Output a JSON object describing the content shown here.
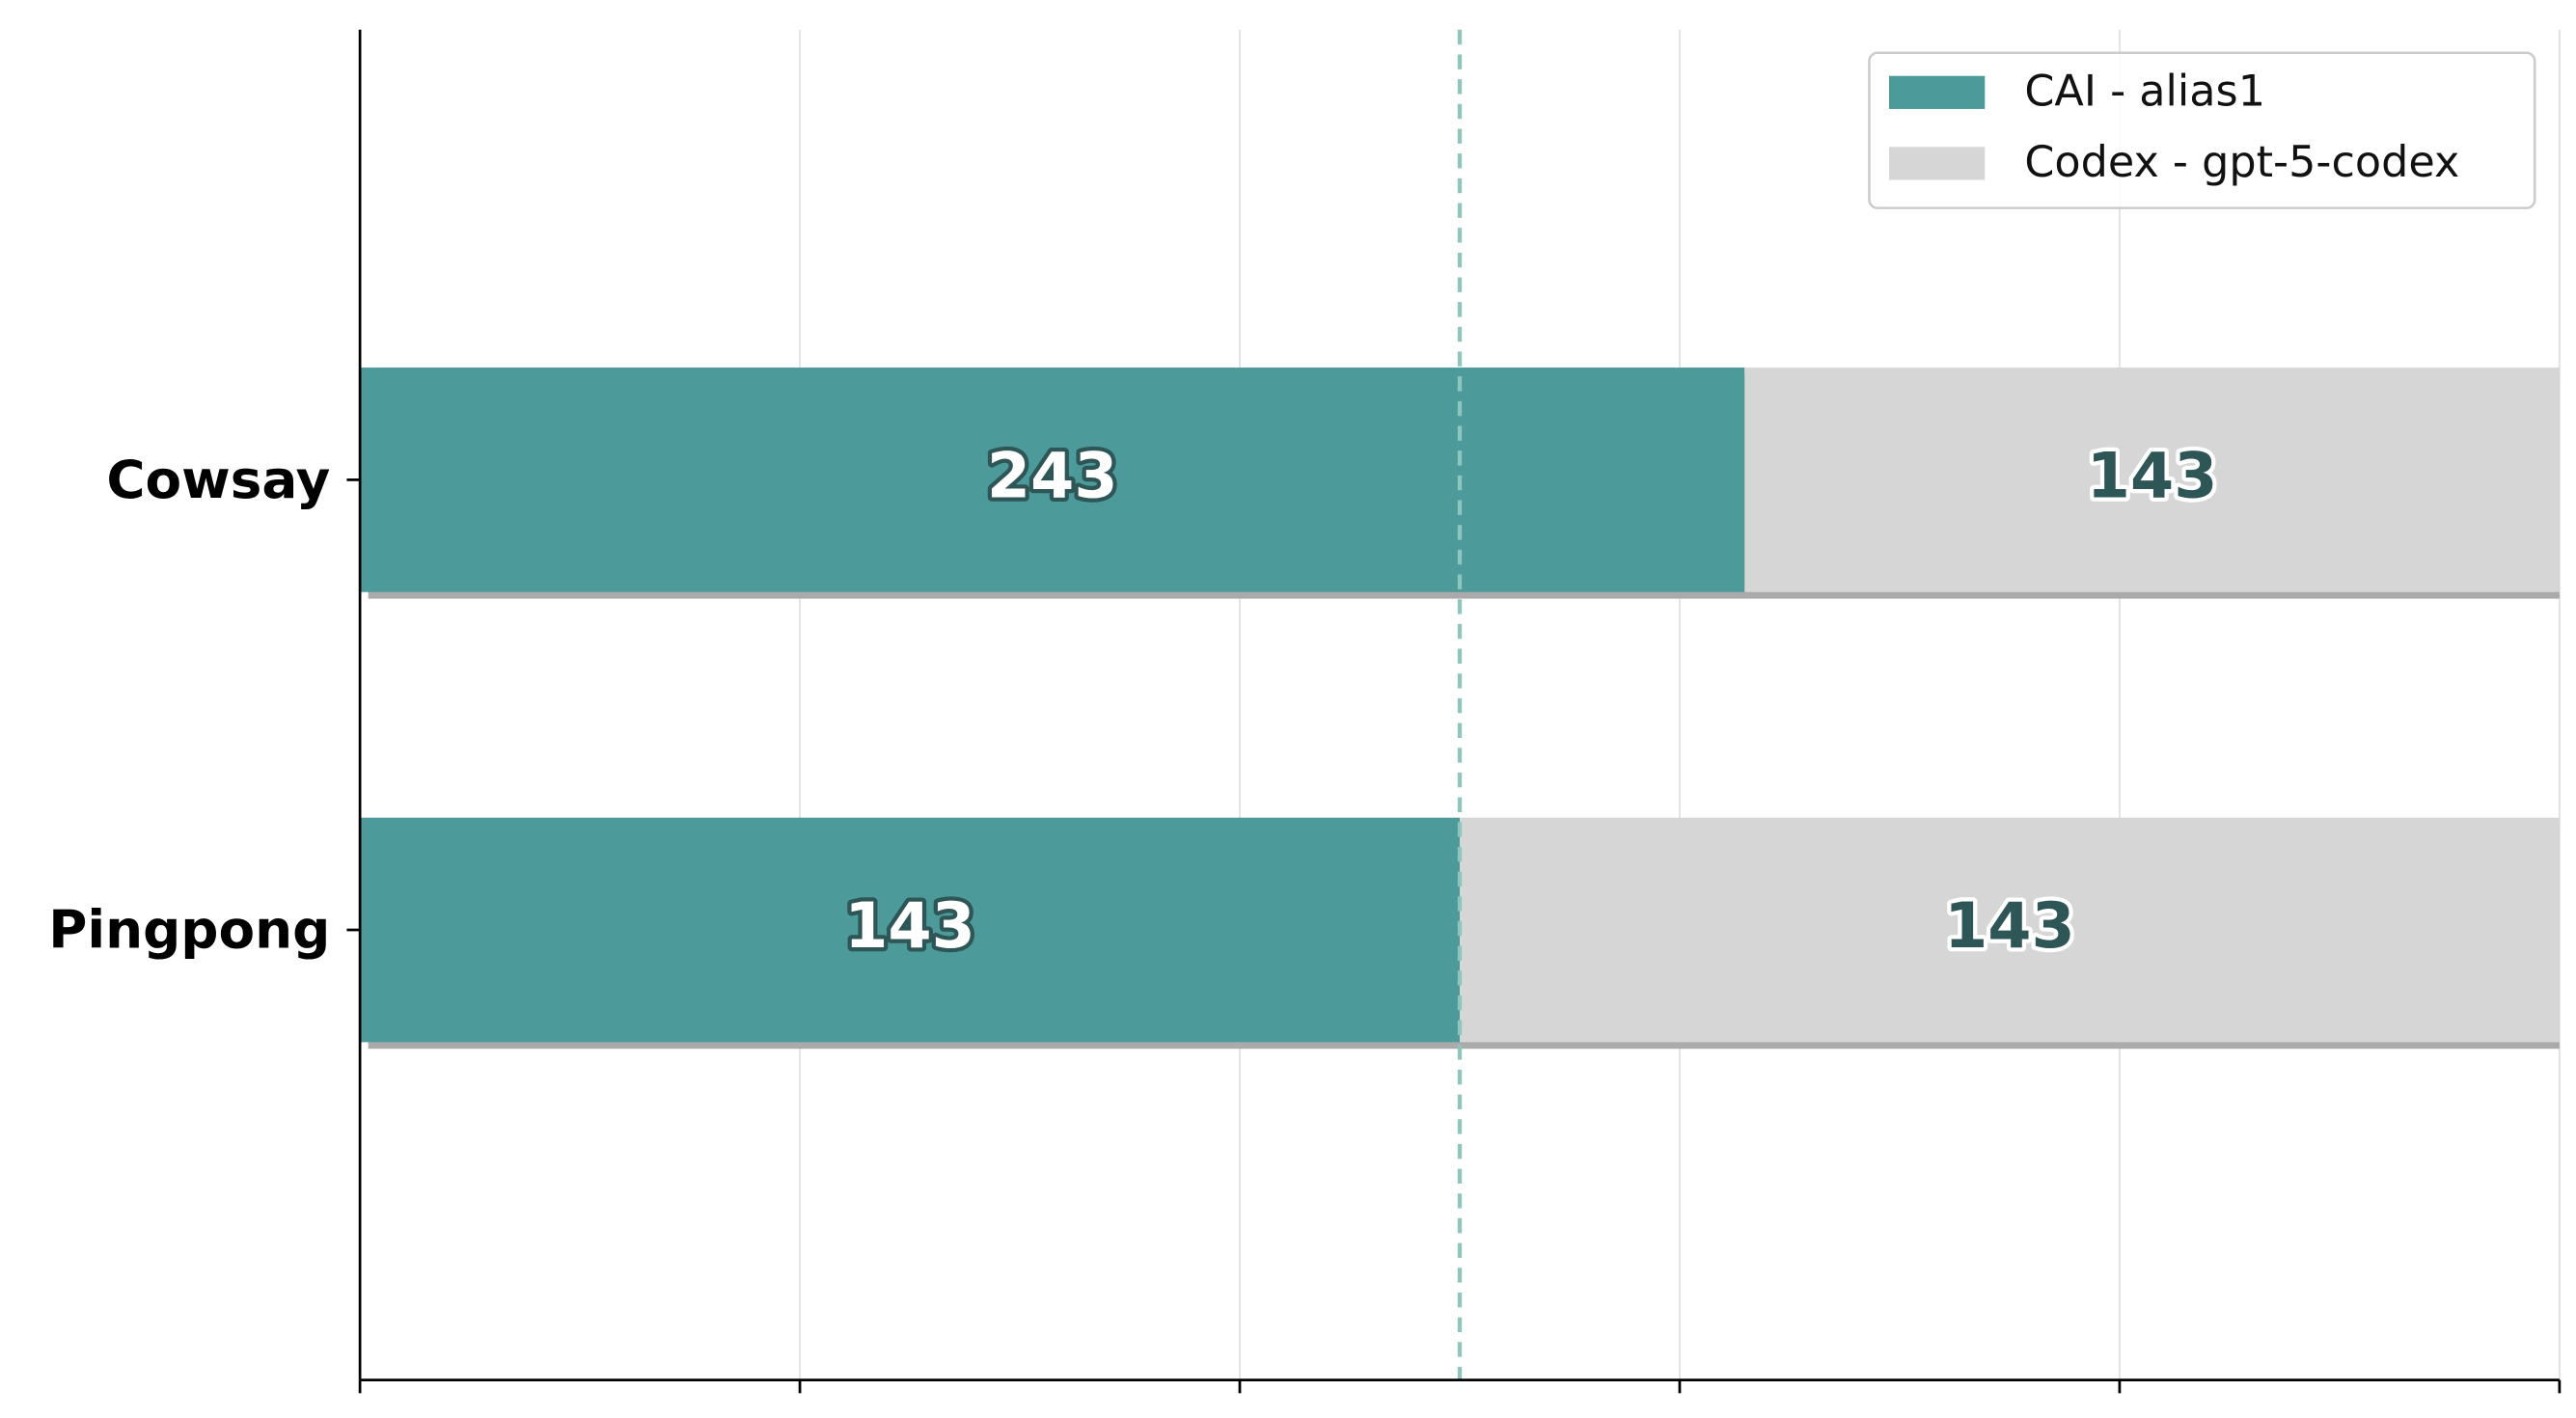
{
  "chart_data": {
    "type": "bar",
    "orientation": "horizontal",
    "stacking": "percent",
    "categories": [
      "Cowsay",
      "Pingpong"
    ],
    "series": [
      {
        "name": "CAI - alias1",
        "color": "#4d9a9b",
        "values": [
          243,
          143
        ]
      },
      {
        "name": "Codex - gpt-5-codex",
        "color": "#d6d6d6",
        "values": [
          143,
          143
        ]
      }
    ],
    "xlim": [
      0,
      100
    ],
    "xticks": [
      0,
      20,
      40,
      60,
      80,
      100
    ],
    "grid": true,
    "legend": "upper right",
    "reference_line": {
      "x": 50,
      "color": "#8ec6be"
    }
  }
}
